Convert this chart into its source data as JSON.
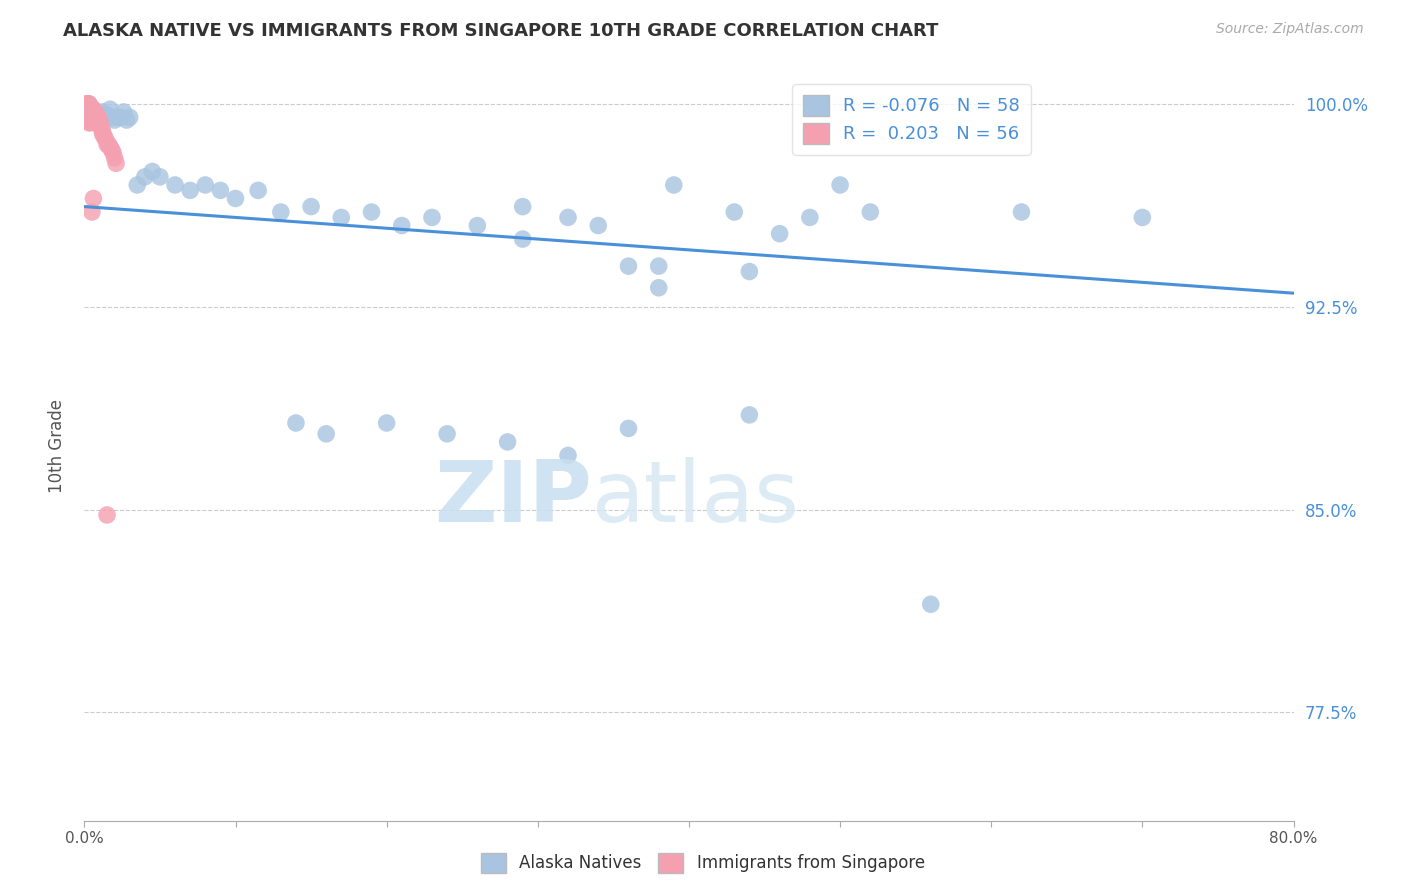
{
  "title": "ALASKA NATIVE VS IMMIGRANTS FROM SINGAPORE 10TH GRADE CORRELATION CHART",
  "source": "Source: ZipAtlas.com",
  "ylabel": "10th Grade",
  "r_blue": -0.076,
  "n_blue": 58,
  "r_pink": 0.203,
  "n_pink": 56,
  "legend_labels": [
    "Alaska Natives",
    "Immigrants from Singapore"
  ],
  "blue_color": "#a8c4e0",
  "pink_color": "#f4a0b0",
  "trendline_color": "#4a90d9",
  "watermark_zip": "ZIP",
  "watermark_atlas": "atlas",
  "xmin": 0.0,
  "xmax": 0.8,
  "ymin": 0.735,
  "ymax": 1.012,
  "yticks": [
    0.775,
    0.85,
    0.925,
    1.0
  ],
  "ytick_labels": [
    "77.5%",
    "85.0%",
    "92.5%",
    "100.0%"
  ],
  "xticks": [
    0.0,
    0.1,
    0.2,
    0.3,
    0.4,
    0.5,
    0.6,
    0.7,
    0.8
  ],
  "xtick_labels": [
    "0.0%",
    "",
    "",
    "",
    "",
    "",
    "",
    "",
    "80.0%"
  ],
  "blue_x": [
    0.003,
    0.005,
    0.007,
    0.009,
    0.01,
    0.012,
    0.013,
    0.015,
    0.017,
    0.018,
    0.02,
    0.022,
    0.024,
    0.026,
    0.028,
    0.03,
    0.035,
    0.04,
    0.045,
    0.05,
    0.06,
    0.07,
    0.08,
    0.09,
    0.1,
    0.115,
    0.13,
    0.15,
    0.17,
    0.19,
    0.21,
    0.23,
    0.26,
    0.29,
    0.32,
    0.29,
    0.34,
    0.36,
    0.39,
    0.43,
    0.46,
    0.5,
    0.52,
    0.38,
    0.44,
    0.38,
    0.48,
    0.56,
    0.62,
    0.7,
    0.14,
    0.16,
    0.2,
    0.24,
    0.28,
    0.32,
    0.36,
    0.44
  ],
  "blue_y": [
    1.0,
    0.998,
    0.997,
    0.996,
    0.994,
    0.997,
    0.995,
    0.996,
    0.998,
    0.995,
    0.994,
    0.995,
    0.995,
    0.997,
    0.994,
    0.995,
    0.97,
    0.973,
    0.975,
    0.973,
    0.97,
    0.968,
    0.97,
    0.968,
    0.965,
    0.968,
    0.96,
    0.962,
    0.958,
    0.96,
    0.955,
    0.958,
    0.955,
    0.962,
    0.958,
    0.95,
    0.955,
    0.94,
    0.97,
    0.96,
    0.952,
    0.97,
    0.96,
    0.94,
    0.938,
    0.932,
    0.958,
    0.815,
    0.96,
    0.958,
    0.882,
    0.878,
    0.882,
    0.878,
    0.875,
    0.87,
    0.88,
    0.885
  ],
  "pink_x": [
    0.001,
    0.001,
    0.001,
    0.001,
    0.002,
    0.002,
    0.002,
    0.002,
    0.002,
    0.003,
    0.003,
    0.003,
    0.003,
    0.003,
    0.003,
    0.003,
    0.003,
    0.004,
    0.004,
    0.004,
    0.004,
    0.004,
    0.004,
    0.005,
    0.005,
    0.005,
    0.006,
    0.006,
    0.006,
    0.007,
    0.007,
    0.007,
    0.007,
    0.008,
    0.008,
    0.008,
    0.009,
    0.009,
    0.01,
    0.01,
    0.01,
    0.011,
    0.012,
    0.012,
    0.013,
    0.014,
    0.015,
    0.016,
    0.017,
    0.018,
    0.019,
    0.02,
    0.021,
    0.005,
    0.006,
    0.015
  ],
  "pink_y": [
    1.0,
    0.999,
    0.998,
    0.997,
    1.0,
    0.999,
    0.998,
    0.997,
    0.996,
    1.0,
    0.999,
    0.998,
    0.997,
    0.996,
    0.995,
    0.994,
    0.993,
    0.999,
    0.998,
    0.997,
    0.995,
    0.994,
    0.993,
    0.998,
    0.997,
    0.996,
    0.998,
    0.997,
    0.996,
    0.997,
    0.996,
    0.995,
    0.994,
    0.996,
    0.995,
    0.994,
    0.995,
    0.993,
    0.994,
    0.993,
    0.992,
    0.992,
    0.99,
    0.989,
    0.988,
    0.987,
    0.985,
    0.985,
    0.984,
    0.983,
    0.982,
    0.98,
    0.978,
    0.96,
    0.965,
    0.848
  ],
  "trendline_x": [
    0.0,
    0.8
  ],
  "trendline_y": [
    0.962,
    0.93
  ]
}
